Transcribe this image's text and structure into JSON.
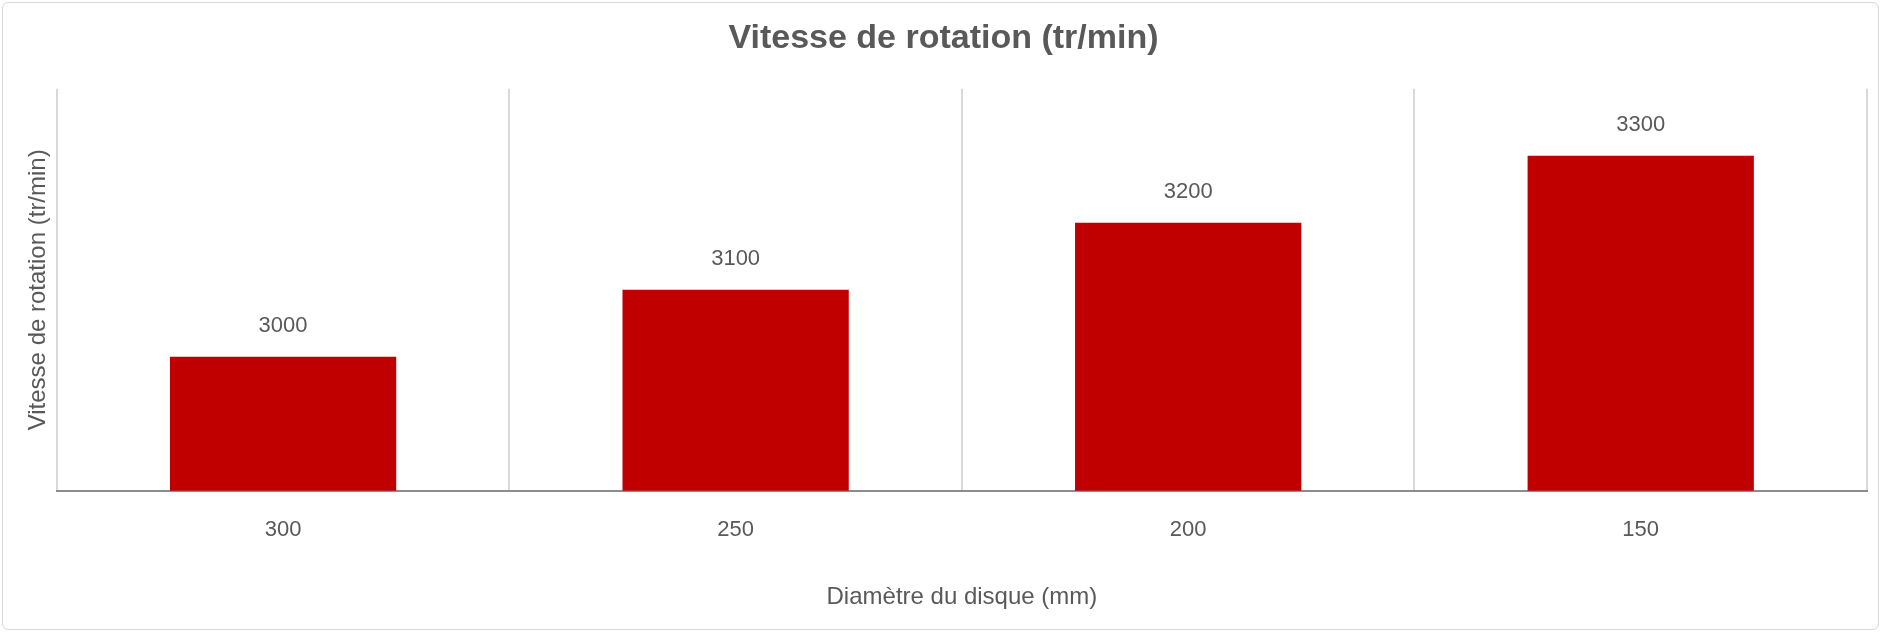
{
  "chart_data": {
    "type": "bar",
    "title": "Vitesse de rotation (tr/min)",
    "xlabel": "Diamètre du disque (mm)",
    "ylabel": "Vitesse de rotation (tr/min)",
    "categories": [
      "300",
      "250",
      "200",
      "150"
    ],
    "values": [
      3000,
      3100,
      3200,
      3300
    ],
    "color": "#c00000",
    "ylim": [
      2800,
      3400
    ],
    "grid": "x",
    "data_labels": true,
    "tick_labels": "x"
  }
}
